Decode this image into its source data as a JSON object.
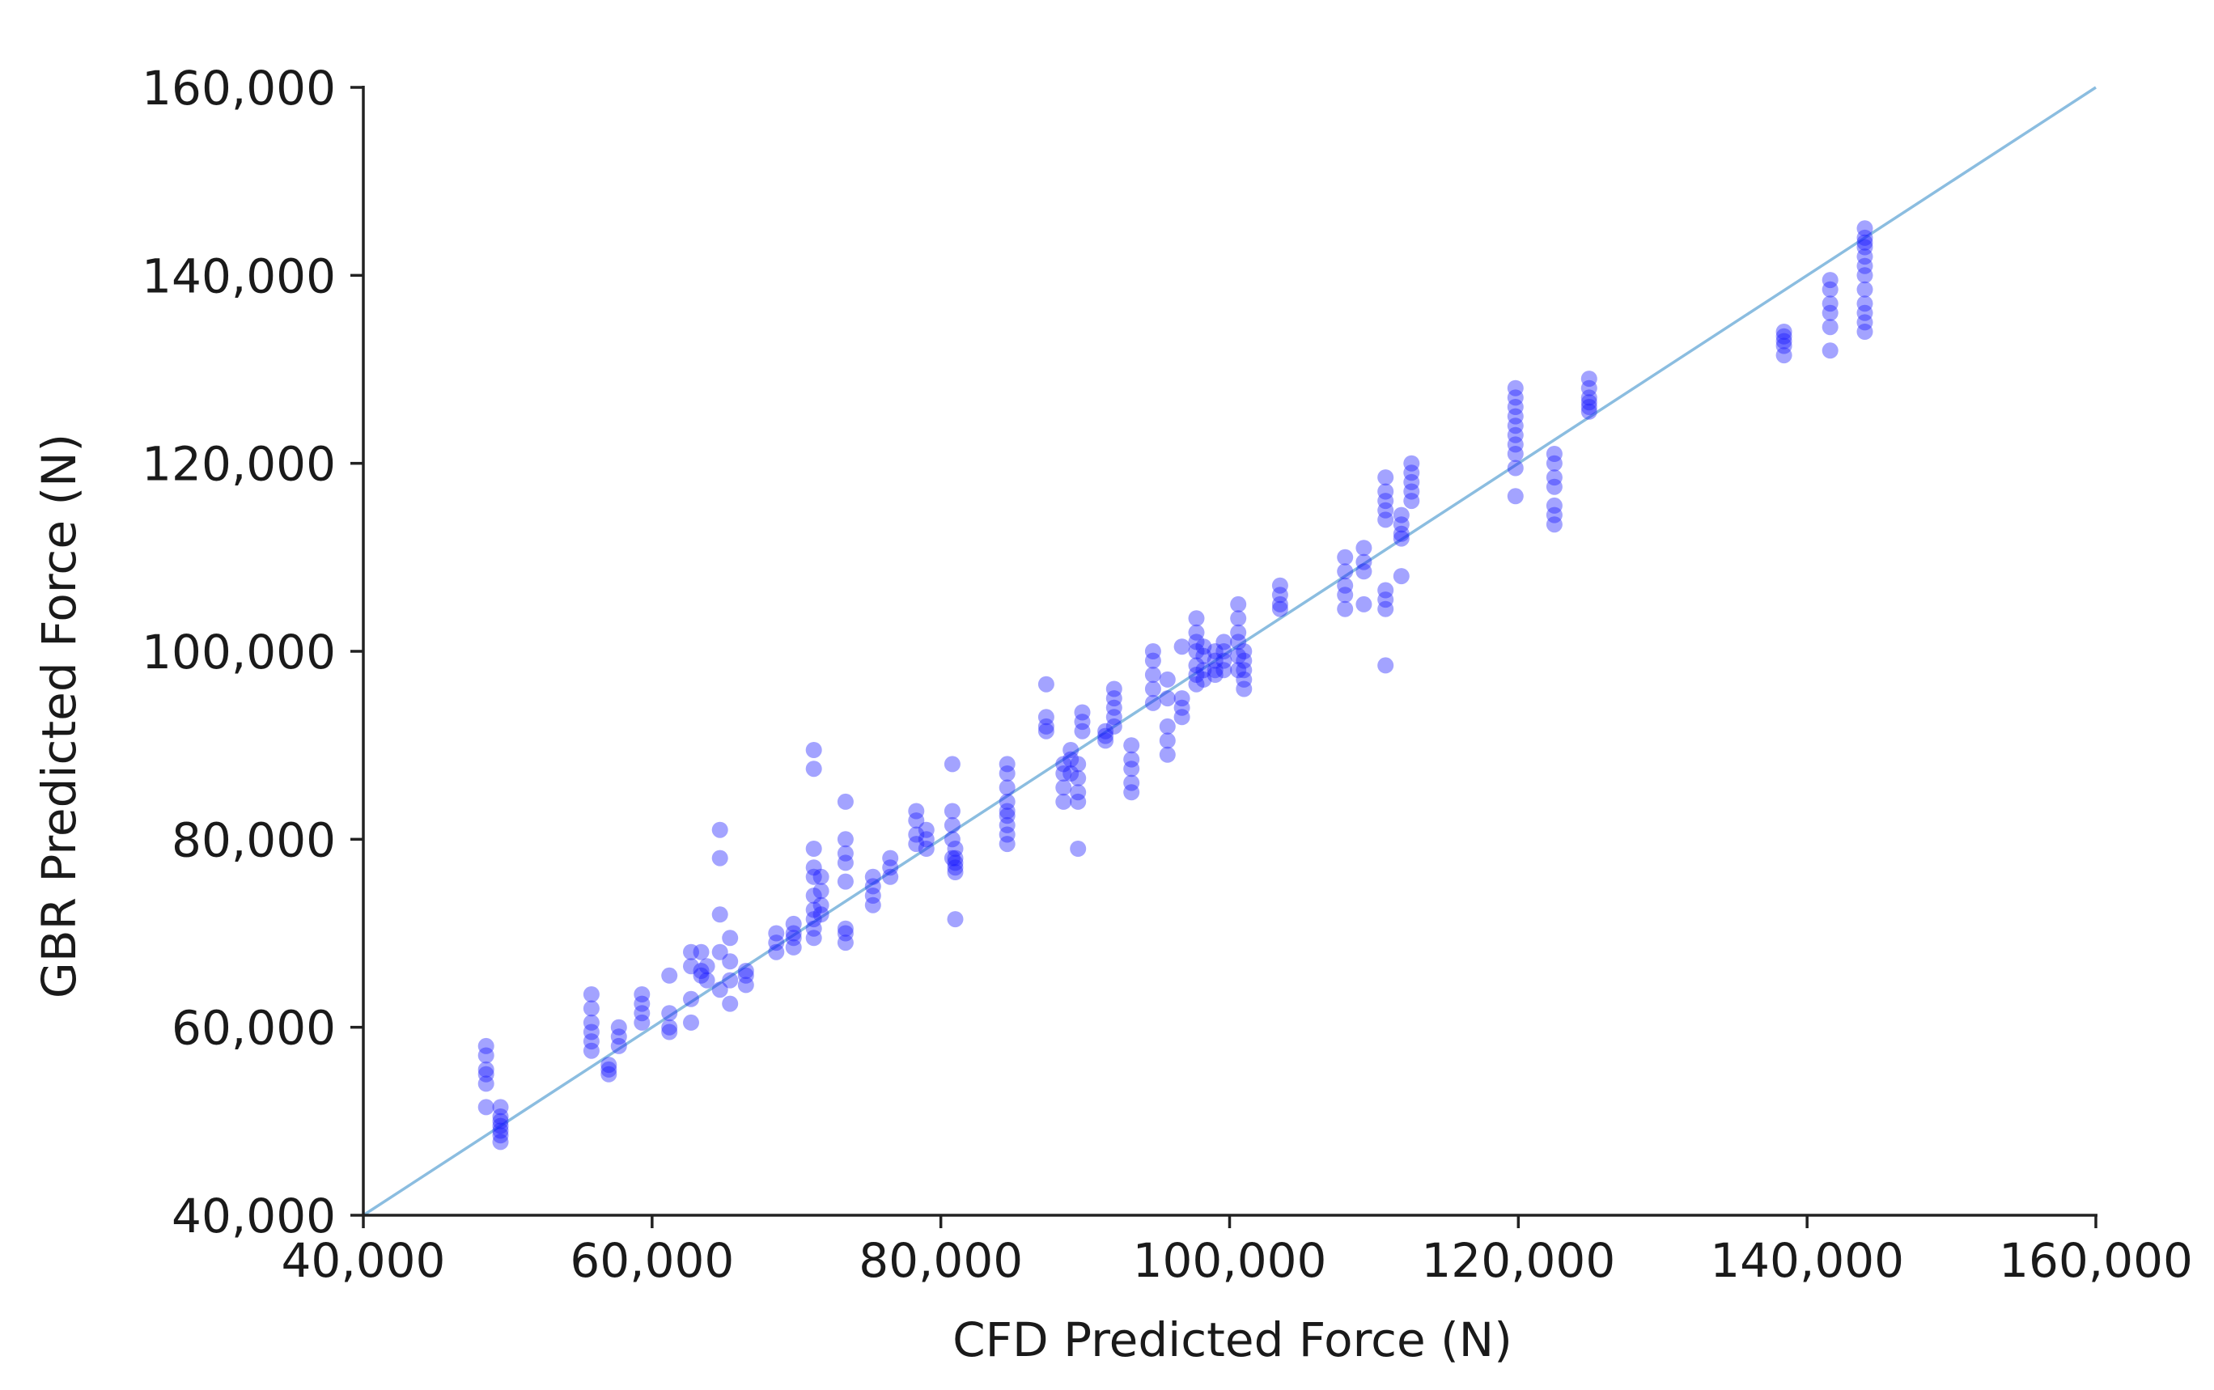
{
  "chart_data": {
    "type": "scatter",
    "xlabel": "CFD Predicted Force (N)",
    "ylabel": "GBR Predicted Force (N)",
    "xlim": [
      40000,
      160000
    ],
    "ylim": [
      40000,
      160000
    ],
    "xticks": [
      40000,
      60000,
      80000,
      100000,
      120000,
      140000,
      160000
    ],
    "yticks": [
      40000,
      60000,
      80000,
      100000,
      120000,
      140000,
      160000
    ],
    "xtick_labels": [
      "40,000",
      "60,000",
      "80,000",
      "100,000",
      "120,000",
      "140,000",
      "160,000"
    ],
    "ytick_labels": [
      "40,000",
      "60,000",
      "80,000",
      "100,000",
      "120,000",
      "140,000",
      "160,000"
    ],
    "grid": false,
    "legend": "none",
    "reference_line": {
      "x": [
        40000,
        160000
      ],
      "y": [
        40000,
        160000
      ],
      "color": "#8bbde0"
    },
    "point_color": "#1a1aff",
    "point_opacity": 0.4,
    "series": [
      {
        "x": [
          48500,
          48500,
          48500,
          48500,
          48500,
          48500,
          49500,
          49500,
          49500,
          49500,
          49500,
          49500,
          49500,
          55800,
          55800,
          55800,
          55800,
          55800,
          55800,
          57000,
          57000,
          57000,
          57700,
          57700,
          57700,
          59300,
          59300,
          59300,
          59300,
          61200,
          61200,
          61200,
          61200,
          62700,
          62700,
          62700,
          62700,
          63400,
          63400,
          63400,
          63800,
          63800,
          64700,
          64700,
          64700,
          64700,
          64700,
          65400,
          65400,
          65400,
          65400,
          66500,
          66500,
          66500,
          68600,
          68600,
          68600,
          69800,
          69800,
          69800,
          69800,
          71200,
          71200,
          71200,
          71200,
          71200,
          71200,
          71200,
          71200,
          71200,
          71200,
          71700,
          71700,
          71700,
          71700,
          73400,
          73400,
          73400,
          73400,
          73400,
          73400,
          73400,
          73400,
          75300,
          75300,
          75300,
          75300,
          76500,
          76500,
          76500,
          78300,
          78300,
          78300,
          78300,
          79000,
          79000,
          79000,
          80800,
          80800,
          80800,
          80800,
          80800,
          81000,
          81000,
          81000,
          81000,
          81000,
          81000,
          84600,
          84600,
          84600,
          84600,
          84600,
          84600,
          84600,
          84600,
          84600,
          87300,
          87300,
          87300,
          87300,
          88500,
          88500,
          88500,
          88500,
          89000,
          89000,
          89000,
          89500,
          89500,
          89500,
          89500,
          89500,
          89800,
          89800,
          89800,
          91400,
          91400,
          91400,
          92000,
          92000,
          92000,
          92000,
          92000,
          93200,
          93200,
          93200,
          93200,
          93200,
          94700,
          94700,
          94700,
          94700,
          94700,
          95700,
          95700,
          95700,
          95700,
          95700,
          96700,
          96700,
          96700,
          96700,
          97700,
          97700,
          97700,
          97700,
          97700,
          97700,
          97700,
          98200,
          98200,
          98200,
          98200,
          99000,
          99000,
          99000,
          99000,
          99600,
          99600,
          99600,
          99600,
          100600,
          100600,
          100600,
          100600,
          100600,
          100600,
          101000,
          101000,
          101000,
          101000,
          101000,
          103500,
          103500,
          103500,
          103500,
          108000,
          108000,
          108000,
          108000,
          108000,
          109300,
          109300,
          109300,
          109300,
          110800,
          110800,
          110800,
          110800,
          110800,
          110800,
          110800,
          110800,
          110800,
          111900,
          111900,
          111900,
          111900,
          111900,
          112600,
          112600,
          112600,
          112600,
          112600,
          119800,
          119800,
          119800,
          119800,
          119800,
          119800,
          119800,
          119800,
          119800,
          119800,
          122500,
          122500,
          122500,
          122500,
          122500,
          122500,
          122500,
          124900,
          124900,
          124900,
          124900,
          124900,
          124900,
          138400,
          138400,
          138400,
          138400,
          138400,
          141600,
          141600,
          141600,
          141600,
          141600,
          141600,
          144000,
          144000,
          144000,
          144000,
          144000,
          144000,
          144000,
          144000,
          144000,
          144000,
          144000,
          144000
        ],
        "y": [
          58000,
          57000,
          55500,
          55000,
          54000,
          51500,
          51500,
          50500,
          50000,
          49500,
          48500,
          47800,
          49000,
          63500,
          62000,
          60500,
          59500,
          58500,
          57500,
          56000,
          55500,
          55000,
          60000,
          59000,
          58000,
          63500,
          62500,
          61500,
          60500,
          61500,
          60000,
          59500,
          65500,
          68000,
          66500,
          63000,
          60500,
          68000,
          66000,
          65500,
          66500,
          65000,
          81000,
          78000,
          72000,
          68000,
          64000,
          69500,
          67000,
          65000,
          62500,
          66000,
          65500,
          64500,
          70000,
          69000,
          68000,
          71000,
          70000,
          69500,
          68500,
          89500,
          87500,
          79000,
          77000,
          76000,
          74000,
          72500,
          71500,
          70500,
          69500,
          76000,
          74500,
          73000,
          72000,
          84000,
          80000,
          78500,
          77500,
          75500,
          70500,
          70000,
          69000,
          76000,
          75000,
          74000,
          73000,
          78000,
          77000,
          76000,
          83000,
          82000,
          80500,
          79500,
          81000,
          80000,
          79000,
          88000,
          83000,
          81500,
          80000,
          78000,
          79000,
          78000,
          77000,
          76500,
          71500,
          77500,
          88000,
          87000,
          85500,
          84000,
          83000,
          82500,
          81500,
          80500,
          79500,
          96500,
          93000,
          92000,
          91500,
          88000,
          87000,
          85500,
          84000,
          89500,
          88500,
          87000,
          86500,
          85000,
          84000,
          79000,
          88000,
          93500,
          92500,
          91500,
          91500,
          91000,
          90500,
          96000,
          95000,
          94000,
          93000,
          92000,
          90000,
          88500,
          87500,
          86000,
          85000,
          100000,
          99000,
          97500,
          96000,
          94500,
          97000,
          95000,
          92000,
          90500,
          89000,
          100500,
          95000,
          94000,
          93000,
          103500,
          102000,
          101000,
          100000,
          98500,
          97500,
          96500,
          100500,
          99500,
          98000,
          97000,
          100000,
          99000,
          98000,
          97500,
          101000,
          100000,
          99000,
          98000,
          105000,
          103500,
          102000,
          101000,
          99500,
          98000,
          100000,
          99000,
          98000,
          97000,
          96000,
          107000,
          106000,
          105000,
          104500,
          110000,
          108500,
          107000,
          106000,
          104500,
          111000,
          109500,
          108500,
          105000,
          118500,
          117000,
          116000,
          115000,
          114000,
          106500,
          105500,
          104500,
          98500,
          114500,
          113500,
          112500,
          108000,
          112000,
          120000,
          119000,
          118000,
          117000,
          116000,
          128000,
          127000,
          126000,
          125000,
          124000,
          123000,
          122000,
          121000,
          119500,
          116500,
          121000,
          120000,
          118500,
          117500,
          115500,
          114500,
          113500,
          129000,
          128000,
          127000,
          126500,
          126000,
          125500,
          134000,
          133500,
          133000,
          132500,
          131500,
          139500,
          138500,
          137000,
          136000,
          134500,
          132000,
          145000,
          144000,
          143500,
          143000,
          142000,
          141000,
          140000,
          138500,
          137000,
          136000,
          135000,
          134000
        ]
      }
    ]
  }
}
